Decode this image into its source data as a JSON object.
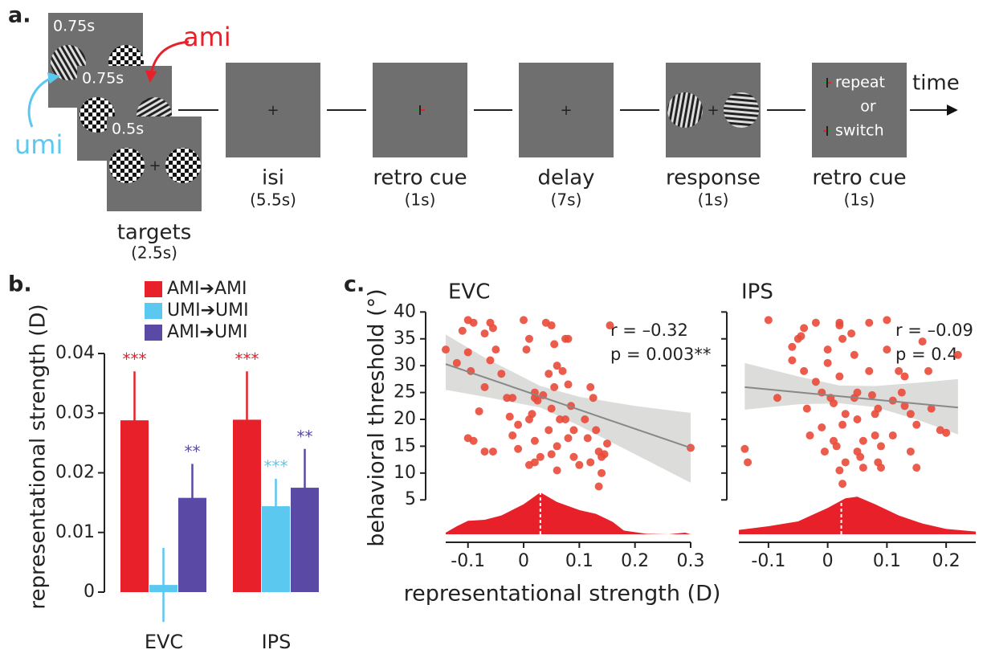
{
  "diagram": {
    "panel": "a.",
    "frames": [
      "0.75s",
      "0.75s",
      "0.5s"
    ],
    "ami": "ami",
    "umi": "umi",
    "screens": [
      {
        "label": "targets",
        "duration": "(2.5s)"
      },
      {
        "label": "isi",
        "duration": "(5.5s)"
      },
      {
        "label": "retro cue",
        "duration": "(1s)"
      },
      {
        "label": "delay",
        "duration": "(7s)"
      },
      {
        "label": "response",
        "duration": "(1s)"
      },
      {
        "label": "retro cue",
        "duration": "(1s)"
      }
    ],
    "cue_text": [
      "repeat",
      "or",
      "switch"
    ],
    "time": "time"
  },
  "chart_data": [
    {
      "type": "bar",
      "panel": "b.",
      "ylabel": "representational strength (D)",
      "categories": [
        "EVC",
        "IPS"
      ],
      "series": [
        {
          "name": "AMI➔AMI",
          "color": "#e8202a",
          "values": [
            0.0288,
            0.0289
          ],
          "errors": [
            0.0082,
            0.0081
          ],
          "significance": [
            "***",
            "***"
          ]
        },
        {
          "name": "UMI➔UMI",
          "color": "#5bc8f0",
          "values": [
            0.0012,
            0.0144
          ],
          "errors": [
            0.0062,
            0.0046
          ],
          "significance": [
            null,
            "***"
          ]
        },
        {
          "name": "AMI➔UMI",
          "color": "#5a4aa6",
          "values": [
            0.0158,
            0.0175
          ],
          "errors": [
            0.0057,
            0.0065
          ],
          "significance": [
            "**",
            "**"
          ]
        }
      ],
      "ylim": [
        0,
        0.04
      ],
      "yticks": [
        0,
        0.01,
        0.02,
        0.03,
        0.04
      ]
    },
    {
      "type": "scatter",
      "panel": "c.",
      "title": "EVC",
      "xlabel": "representational strength (D)",
      "ylabel": "behavioral threshold (°)",
      "annotations": [
        "r = –0.32",
        "p = 0.003**"
      ],
      "color": "#ea4a3a",
      "x": [
        -0.14,
        -0.12,
        -0.1,
        -0.09,
        -0.1,
        -0.11,
        -0.095,
        -0.08,
        -0.09,
        -0.1,
        -0.06,
        -0.055,
        -0.07,
        -0.05,
        -0.06,
        -0.07,
        -0.055,
        -0.07,
        -0.04,
        -0.03,
        -0.02,
        -0.01,
        -0.02,
        -0.01,
        0,
        0.01,
        0.005,
        0.02,
        0.02,
        0.025,
        0.015,
        0.01,
        0.02,
        0.03,
        0.02,
        0.01,
        0.04,
        0.05,
        0.055,
        0.06,
        0.045,
        0.055,
        0.05,
        0.045,
        0.06,
        0.05,
        0.06,
        0.075,
        0.08,
        0.07,
        0.08,
        0.085,
        0.075,
        0.09,
        0.08,
        0.09,
        0.1,
        0.11,
        0.115,
        0.12,
        0.125,
        0.13,
        0.12,
        0.135,
        0.14,
        0.14,
        0.15,
        0.145,
        0.135,
        0.155,
        0.3,
        -0.025,
        0.035,
        0.065
      ],
      "values": [
        33,
        30.5,
        38.5,
        38,
        32.5,
        36.5,
        29,
        21.5,
        16,
        16.5,
        38,
        37,
        36,
        33,
        31,
        26,
        14,
        14,
        28.5,
        24,
        24,
        19,
        17,
        14.5,
        38.5,
        35,
        33,
        25,
        24,
        23.5,
        21,
        20,
        16,
        13,
        12,
        11.5,
        38,
        37.5,
        34,
        30,
        28.5,
        26,
        22,
        18,
        15,
        13.5,
        10.5,
        35,
        35,
        29,
        26.5,
        22.5,
        20,
        18,
        16.5,
        13,
        11.5,
        20,
        16.5,
        26,
        24,
        18,
        12,
        14,
        13,
        10,
        15.5,
        13.5,
        7.5,
        37.5,
        14.7,
        20.5,
        24.5,
        20
      ],
      "fit": {
        "x": [
          -0.14,
          0.3
        ],
        "values": [
          30.3,
          14.7
        ]
      },
      "ci": {
        "x": [
          -0.14,
          -0.07,
          0,
          0.03,
          0.1,
          0.2,
          0.3
        ],
        "upper": [
          35.8,
          31.5,
          27.8,
          26.2,
          24.2,
          22.5,
          21.2
        ],
        "lower": [
          25.5,
          24.2,
          22.8,
          22.2,
          18.8,
          13.5,
          8.2
        ]
      },
      "density": {
        "color": "#e8202a",
        "x": [
          -0.14,
          -0.12,
          -0.1,
          -0.07,
          -0.04,
          0,
          0.03,
          0.06,
          0.1,
          0.13,
          0.16,
          0.18,
          0.22,
          0.26,
          0.29,
          0.3
        ],
        "values": [
          -1.1,
          0.1,
          1.1,
          1.3,
          2.1,
          4.2,
          6.4,
          4.6,
          3.1,
          2.4,
          0.9,
          -0.7,
          -1.3,
          -1.4,
          -1.1,
          -1.4
        ]
      },
      "median": 0.03,
      "xlim": [
        -0.14,
        0.3
      ],
      "ylim": [
        -1.4,
        40.5
      ],
      "xticks": [
        -0.1,
        0,
        0.1,
        0.2,
        0.3
      ],
      "yticks": [
        5,
        10,
        15,
        20,
        25,
        30,
        35,
        40
      ]
    },
    {
      "type": "scatter",
      "title": "IPS",
      "annotations": [
        "r = –0.09",
        "p = 0.4"
      ],
      "color": "#ea4a3a",
      "x": [
        -0.14,
        -0.135,
        -0.1,
        -0.085,
        -0.06,
        -0.06,
        -0.05,
        -0.045,
        -0.04,
        -0.04,
        -0.035,
        -0.03,
        -0.02,
        -0.02,
        -0.01,
        -0.01,
        -0.005,
        0,
        0,
        0.005,
        0.01,
        0.01,
        0.015,
        0.02,
        0.02,
        0.025,
        0.02,
        0.03,
        0.025,
        0.03,
        0.02,
        0.025,
        0.04,
        0.045,
        0.05,
        0.045,
        0.05,
        0.06,
        0.05,
        0.055,
        0.06,
        0.07,
        0.07,
        0.075,
        0.08,
        0.085,
        0.08,
        0.09,
        0.085,
        0.09,
        0.1,
        0.1,
        0.11,
        0.11,
        0.12,
        0.125,
        0.13,
        0.13,
        0.14,
        0.14,
        0.15,
        0.15,
        0.16,
        0.17,
        0.175,
        0.19,
        0.2,
        0.22
      ],
      "values": [
        14.5,
        12,
        38.5,
        24,
        33.5,
        31,
        35,
        35.5,
        37,
        29,
        22,
        17,
        38,
        27,
        25,
        18.5,
        14,
        33,
        30.5,
        24,
        23,
        16,
        15,
        38,
        37.5,
        35,
        28,
        21,
        19,
        12,
        10.5,
        8,
        36,
        32,
        25,
        24,
        20,
        16,
        14,
        13,
        11,
        38,
        29,
        24.5,
        21,
        22,
        17,
        15,
        12,
        11,
        38.5,
        33,
        23.5,
        17,
        29,
        25,
        28,
        22.5,
        21,
        14,
        19,
        11,
        34.5,
        29,
        22,
        18,
        17.5,
        32
      ],
      "fit": {
        "x": [
          -0.14,
          0.22
        ],
        "values": [
          26,
          22.2
        ]
      },
      "ci": {
        "x": [
          -0.14,
          -0.05,
          0.02,
          0.08,
          0.15,
          0.22
        ],
        "upper": [
          30.5,
          28,
          26.3,
          26.2,
          26.8,
          27.5
        ],
        "lower": [
          21.8,
          22.8,
          23,
          22.3,
          20,
          17.2
        ]
      },
      "density": {
        "color": "#e8202a",
        "x": [
          -0.15,
          -0.1,
          -0.05,
          0,
          0.03,
          0.05,
          0.08,
          0.12,
          0.16,
          0.2,
          0.25
        ],
        "values": [
          -0.6,
          0.1,
          1.0,
          3.5,
          5.3,
          5.6,
          4.2,
          2.1,
          0.6,
          -0.4,
          -0.9
        ]
      },
      "median": 0.023,
      "xlim": [
        -0.15,
        0.25
      ],
      "ylim": [
        -1.4,
        40.5
      ],
      "xticks": [
        -0.1,
        0,
        0.1,
        0.2
      ],
      "yticks": [
        5,
        10,
        15,
        20,
        25,
        30,
        35,
        40
      ],
      "ytick_labels": false
    }
  ]
}
